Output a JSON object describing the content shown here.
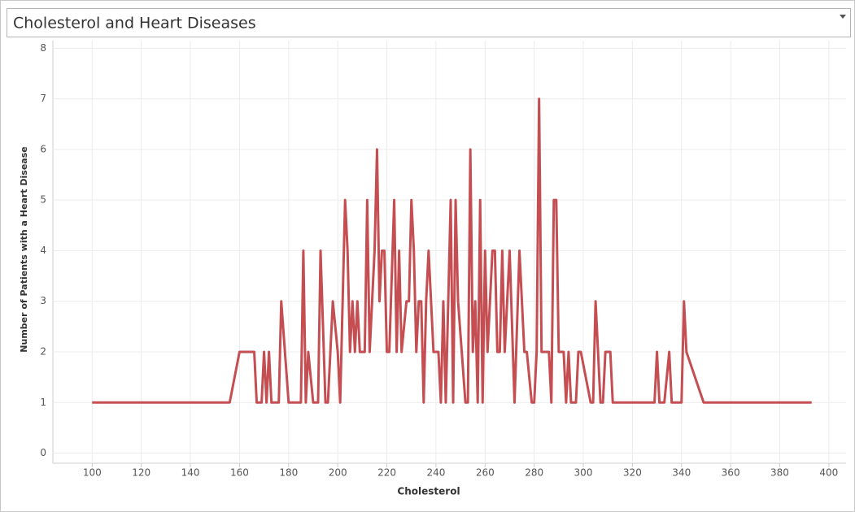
{
  "chart_data": {
    "type": "line",
    "title": "Cholesterol and Heart Diseases",
    "x_label": "Cholesterol",
    "y_label": "Number of Patients with a Heart Disease",
    "x": [
      100,
      156,
      160,
      166,
      167,
      169,
      170,
      171,
      172,
      173,
      176,
      177,
      180,
      185,
      186,
      187,
      188,
      190,
      192,
      193,
      195,
      196,
      197,
      198,
      200,
      201,
      203,
      204,
      205,
      206,
      207,
      208,
      209,
      211,
      212,
      213,
      215,
      216,
      217,
      218,
      219,
      220,
      221,
      223,
      224,
      225,
      226,
      228,
      229,
      230,
      231,
      232,
      233,
      234,
      235,
      236,
      237,
      239,
      241,
      242,
      243,
      244,
      246,
      247,
      248,
      249,
      252,
      253,
      254,
      255,
      256,
      257,
      258,
      259,
      260,
      261,
      263,
      264,
      265,
      266,
      267,
      268,
      270,
      272,
      274,
      276,
      277,
      279,
      280,
      281,
      282,
      283,
      285,
      286,
      287,
      288,
      289,
      290,
      292,
      293,
      294,
      295,
      297,
      298,
      299,
      303,
      304,
      305,
      307,
      308,
      309,
      311,
      312,
      329,
      330,
      331,
      333,
      335,
      336,
      340,
      341,
      342,
      349,
      393
    ],
    "series": [
      {
        "name": "Number of Patients with a Heart Disease",
        "color": "#c44e52",
        "values": [
          1,
          1,
          2,
          2,
          1,
          1,
          2,
          1,
          2,
          1,
          1,
          3,
          1,
          1,
          4,
          1,
          2,
          1,
          1,
          4,
          1,
          1,
          2,
          3,
          2,
          1,
          5,
          4,
          2,
          3,
          2,
          3,
          2,
          2,
          5,
          2,
          4,
          6,
          3,
          4,
          4,
          2,
          2,
          5,
          2,
          4,
          2,
          3,
          3,
          5,
          4,
          2,
          3,
          3,
          1,
          3,
          4,
          2,
          2,
          1,
          3,
          1,
          5,
          1,
          5,
          3,
          1,
          1,
          6,
          2,
          3,
          1,
          5,
          1,
          4,
          2,
          4,
          4,
          2,
          2,
          4,
          2,
          4,
          1,
          4,
          2,
          2,
          1,
          1,
          2,
          7,
          2,
          2,
          2,
          1,
          5,
          5,
          2,
          2,
          1,
          2,
          1,
          1,
          2,
          2,
          1,
          1,
          3,
          1,
          1,
          2,
          2,
          1,
          1,
          2,
          1,
          1,
          2,
          1,
          1,
          3,
          2,
          1,
          1
        ]
      }
    ],
    "xlim": [
      84,
      407
    ],
    "ylim": [
      -0.2,
      8.15
    ],
    "xticks": [
      100,
      120,
      140,
      160,
      180,
      200,
      220,
      240,
      260,
      280,
      300,
      320,
      340,
      360,
      380,
      400
    ],
    "yticks": [
      0,
      1,
      2,
      3,
      4,
      5,
      6,
      7,
      8
    ],
    "grid": true
  }
}
